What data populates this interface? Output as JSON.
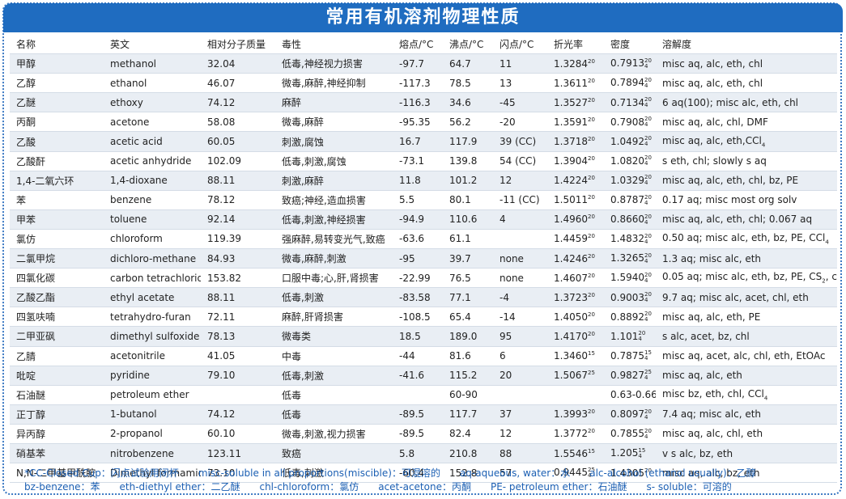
{
  "title": "常用有机溶剂物理性质",
  "table": {
    "header": [
      "名称",
      "英文",
      "相对分子质量",
      "毒性",
      "熔点/°C",
      "沸点/°C",
      "闪点/°C",
      "折光率",
      "密度",
      "溶解度"
    ],
    "rows": [
      [
        "甲醇",
        "methanol",
        "32.04",
        "低毒,神经视力损害",
        "-97.7",
        "64.7",
        "11",
        {
          "text": "1.3284",
          "sup": "20"
        },
        {
          "text": "0.7913",
          "sup": "20",
          "sub": "4"
        },
        "misc aq, alc, eth, chl"
      ],
      [
        "乙醇",
        "ethanol",
        "46.07",
        "微毒,麻醉,神经抑制",
        "-117.3",
        "78.5",
        "13",
        {
          "text": "1.3611",
          "sup": "20"
        },
        {
          "text": "0.7894",
          "sup": "20",
          "sub": "4"
        },
        "misc aq, alc, eth, chl"
      ],
      [
        "乙醚",
        "ethoxy",
        "74.12",
        "麻醉",
        "-116.3",
        "34.6",
        "-45",
        {
          "text": "1.3527",
          "sup": "20"
        },
        {
          "text": "0.7134",
          "sup": "20",
          "sub": "4"
        },
        "6 aq(100); misc alc, eth, chl"
      ],
      [
        "丙酮",
        "acetone",
        "58.08",
        "微毒,麻醉",
        "-95.35",
        "56.2",
        "-20",
        {
          "text": "1.3591",
          "sup": "20"
        },
        {
          "text": "0.7908",
          "sup": "20",
          "sub": "4"
        },
        "misc aq, alc, chl, DMF"
      ],
      [
        "乙酸",
        "acetic acid",
        "60.05",
        "刺激,腐蚀",
        "16.7",
        "117.9",
        "39 (CC)",
        {
          "text": "1.3718",
          "sup": "20"
        },
        {
          "text": "1.0492",
          "sup": "20",
          "sub": "4"
        },
        {
          "text": "misc aq, alc, eth,CCl",
          "sub": "4"
        }
      ],
      [
        "乙酸酐",
        "acetic anhydride",
        "102.09",
        "低毒,刺激,腐蚀",
        "-73.1",
        "139.8",
        "54 (CC)",
        {
          "text": "1.3904",
          "sup": "20"
        },
        {
          "text": "1.0820",
          "sup": "20",
          "sub": "4"
        },
        "s eth, chl; slowly s aq"
      ],
      [
        "1,4-二氧六环",
        "1,4-dioxane",
        "88.11",
        "刺激,麻醉",
        "11.8",
        "101.2",
        "12",
        {
          "text": "1.4224",
          "sup": "20"
        },
        {
          "text": "1.0329",
          "sup": "20",
          "sub": "4"
        },
        "misc aq, alc, eth, chl, bz, PE"
      ],
      [
        "苯",
        "benzene",
        "78.12",
        "致癌;神经,造血损害",
        "5.5",
        "80.1",
        "-11 (CC)",
        {
          "text": "1.5011",
          "sup": "20"
        },
        {
          "text": "0.8787",
          "sup": "20",
          "sub": "4"
        },
        "0.17 aq; misc most org solv"
      ],
      [
        "甲苯",
        "toluene",
        "92.14",
        "低毒,刺激,神经损害",
        "-94.9",
        "110.6",
        "4",
        {
          "text": "1.4960",
          "sup": "20"
        },
        {
          "text": "0.8660",
          "sup": "20",
          "sub": "4"
        },
        "misc aq, alc, eth, chl; 0.067 aq"
      ],
      [
        "氯仿",
        "chloroform",
        "119.39",
        "强麻醉,易转变光气,致癌",
        "-63.6",
        "61.1",
        null,
        {
          "text": "1.4459",
          "sup": "20"
        },
        {
          "text": "1.4832",
          "sup": "20",
          "sub": "4"
        },
        {
          "text": "0.50 aq; misc alc, eth, bz, PE, CCl",
          "sub": "4"
        }
      ],
      [
        "二氯甲烷",
        "dichloro-methane",
        "84.93",
        "微毒,麻醉,刺激",
        "-95",
        "39.7",
        "none",
        {
          "text": "1.4246",
          "sup": "20"
        },
        {
          "text": "1.3265",
          "sup": "20",
          "sub": "4"
        },
        "1.3 aq; misc alc, eth"
      ],
      [
        "四氯化碳",
        "carbon tetrachloride",
        "153.82",
        "口服中毒;心,肝,肾损害",
        "-22.99",
        "76.5",
        "none",
        {
          "text": "1.4607",
          "sup": "20"
        },
        {
          "text": "1.5940",
          "sup": "20",
          "sub": "4"
        },
        {
          "text": "0.05 aq; misc alc, eth, bz, PE, CS",
          "sub": "2",
          "tail": ", chl"
        }
      ],
      [
        "乙酸乙酯",
        "ethyl acetate",
        "88.11",
        "低毒,刺激",
        "-83.58",
        "77.1",
        "-4",
        {
          "text": "1.3723",
          "sup": "20"
        },
        {
          "text": "0.9003",
          "sup": "20",
          "sub": "4"
        },
        "9.7 aq; misc alc, acet, chl, eth"
      ],
      [
        "四氢呋喃",
        "tetrahydro-furan",
        "72.11",
        "麻醉,肝肾损害",
        "-108.5",
        "65.4",
        "-14",
        {
          "text": "1.4050",
          "sup": "20"
        },
        {
          "text": "0.8892",
          "sup": "20",
          "sub": "4"
        },
        "misc aq, alc, eth, PE"
      ],
      [
        "二甲亚砜",
        "dimethyl sulfoxide",
        "78.13",
        "微毒类",
        "18.5",
        "189.0",
        "95",
        {
          "text": "1.4170",
          "sup": "20"
        },
        {
          "text": "1.101",
          "sup": "20",
          "sub": "4"
        },
        "s alc, acet, bz, chl"
      ],
      [
        "乙腈",
        "acetonitrile",
        "41.05",
        "中毒",
        "-44",
        "81.6",
        "6",
        {
          "text": "1.3460",
          "sup": "15"
        },
        {
          "text": "0.7875",
          "sup": "15",
          "sub": "4"
        },
        "misc aq, acet, alc, chl, eth, EtOAc"
      ],
      [
        "吡啶",
        "pyridine",
        "79.10",
        "低毒,刺激",
        "-41.6",
        "115.2",
        "20",
        {
          "text": "1.5067",
          "sup": "25"
        },
        {
          "text": "0.9827",
          "sup": "25",
          "sub": "4"
        },
        "misc aq, alc, eth"
      ],
      [
        "石油醚",
        "petroleum ether",
        null,
        "低毒",
        null,
        "60-90",
        null,
        null,
        "0.63-0.66",
        {
          "text": "misc bz, eth, chl, CCl",
          "sub": "4"
        }
      ],
      [
        "正丁醇",
        "1-butanol",
        "74.12",
        "低毒",
        "-89.5",
        "117.7",
        "37",
        {
          "text": "1.3993",
          "sup": "20"
        },
        {
          "text": "0.8097",
          "sup": "20",
          "sub": "4"
        },
        "7.4 aq; misc alc, eth"
      ],
      [
        "异丙醇",
        "2-propanol",
        "60.10",
        "微毒,刺激,视力损害",
        "-89.5",
        "82.4",
        "12",
        {
          "text": "1.3772",
          "sup": "20"
        },
        {
          "text": "0.7855",
          "sup": "20",
          "sub": "4"
        },
        "misc aq, alc, chl, eth"
      ],
      [
        "硝基苯",
        "nitrobenzene",
        "123.11",
        "致癌",
        "5.8",
        "210.8",
        "88",
        {
          "text": "1.5546",
          "sup": "15"
        },
        {
          "text": "1.205",
          "sup": "15",
          "sub": "4"
        },
        "v s alc, bz, eth"
      ],
      [
        "N,N-二甲基甲酰胺",
        "Dimethyl formamide",
        "73.10",
        "低毒,刺激",
        "-60.4",
        "152.8",
        "57",
        {
          "text": "0.9445",
          "sup": "25",
          "sub": "4"
        },
        {
          "text": "1.4305",
          "sup": "20"
        },
        "misc aq, alc, bz, eth"
      ]
    ]
  },
  "footnotes": [
    [
      "*CC-Closed Cup：闪点试验用闭杯",
      "misc-soluble in all proportions(miscible)：可混溶的",
      "aq-aqueous, water：水",
      "alc-alcohol (ethanol usually)：乙醇"
    ],
    [
      "bz-benzene：苯",
      "eth-diethyl ether：二乙醚",
      "chl-chloroform：氯仿",
      "acet-acetone：丙酮",
      "PE- petroleum ether：石油醚",
      "s- soluble：可溶的"
    ]
  ]
}
